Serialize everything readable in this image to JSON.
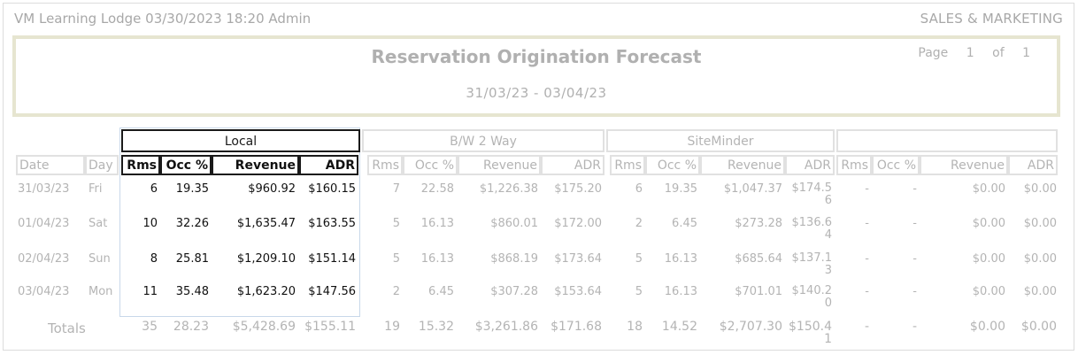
{
  "header": {
    "left": "VM Learning Lodge 03/30/2023 18:20  Admin",
    "right": "SALES & MARKETING"
  },
  "report": {
    "title": "Reservation Origination Forecast",
    "date_range": "31/03/23 - 03/04/23",
    "page_label": "Page",
    "page_num": "1",
    "of_label": "of",
    "page_total": "1"
  },
  "groups": [
    {
      "name": "Local"
    },
    {
      "name": "B/W 2 Way"
    },
    {
      "name": "SiteMinder"
    },
    {
      "name": ""
    }
  ],
  "columns": {
    "date": "Date",
    "day": "Day",
    "rms": "Rms",
    "occ": "Occ %",
    "revenue": "Revenue",
    "adr": "ADR"
  },
  "rows": [
    {
      "date": "31/03/23",
      "day": "Fri",
      "g": [
        [
          "6",
          "19.35",
          "$960.92",
          "$160.15"
        ],
        [
          "7",
          "22.58",
          "$1,226.38",
          "$175.20"
        ],
        [
          "6",
          "19.35",
          "$1,047.37",
          "$174.56"
        ],
        [
          "-",
          "-",
          "$0.00",
          "$0.00"
        ]
      ]
    },
    {
      "date": "01/04/23",
      "day": "Sat",
      "g": [
        [
          "10",
          "32.26",
          "$1,635.47",
          "$163.55"
        ],
        [
          "5",
          "16.13",
          "$860.01",
          "$172.00"
        ],
        [
          "2",
          "6.45",
          "$273.28",
          "$136.64"
        ],
        [
          "-",
          "-",
          "$0.00",
          "$0.00"
        ]
      ]
    },
    {
      "date": "02/04/23",
      "day": "Sun",
      "g": [
        [
          "8",
          "25.81",
          "$1,209.10",
          "$151.14"
        ],
        [
          "5",
          "16.13",
          "$868.19",
          "$173.64"
        ],
        [
          "5",
          "16.13",
          "$685.64",
          "$137.13"
        ],
        [
          "-",
          "-",
          "$0.00",
          "$0.00"
        ]
      ]
    },
    {
      "date": "03/04/23",
      "day": "Mon",
      "g": [
        [
          "11",
          "35.48",
          "$1,623.20",
          "$147.56"
        ],
        [
          "2",
          "6.45",
          "$307.28",
          "$153.64"
        ],
        [
          "5",
          "16.13",
          "$701.01",
          "$140.20"
        ],
        [
          "-",
          "-",
          "$0.00",
          "$0.00"
        ]
      ]
    }
  ],
  "totals": {
    "label": "Totals",
    "g": [
      [
        "35",
        "28.23",
        "$5,428.69",
        "$155.11"
      ],
      [
        "19",
        "15.32",
        "$3,261.86",
        "$171.68"
      ],
      [
        "18",
        "14.52",
        "$2,707.30",
        "$150.41"
      ],
      [
        "-",
        "-",
        "$0.00",
        "$0.00"
      ]
    ]
  }
}
